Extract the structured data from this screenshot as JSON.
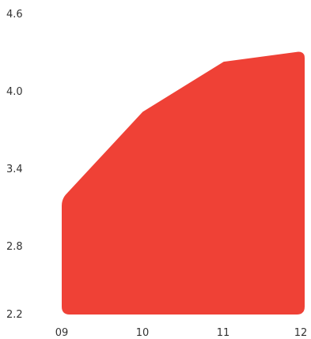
{
  "chart_data": {
    "type": "area",
    "x": [
      "09",
      "10",
      "11",
      "12"
    ],
    "series": [
      {
        "values": [
          3.12,
          3.82,
          4.22,
          4.3
        ]
      }
    ],
    "ylim": [
      2.2,
      4.6
    ],
    "yticks": [
      "4.6",
      "4.0",
      "3.4",
      "2.8",
      "2.2"
    ],
    "xticks": [
      "09",
      "10",
      "11",
      "12"
    ],
    "title": "",
    "xlabel": "",
    "ylabel": "",
    "grid": false,
    "legend": "none",
    "colors": {
      "area": "#ef4136",
      "text": "#333333"
    }
  }
}
